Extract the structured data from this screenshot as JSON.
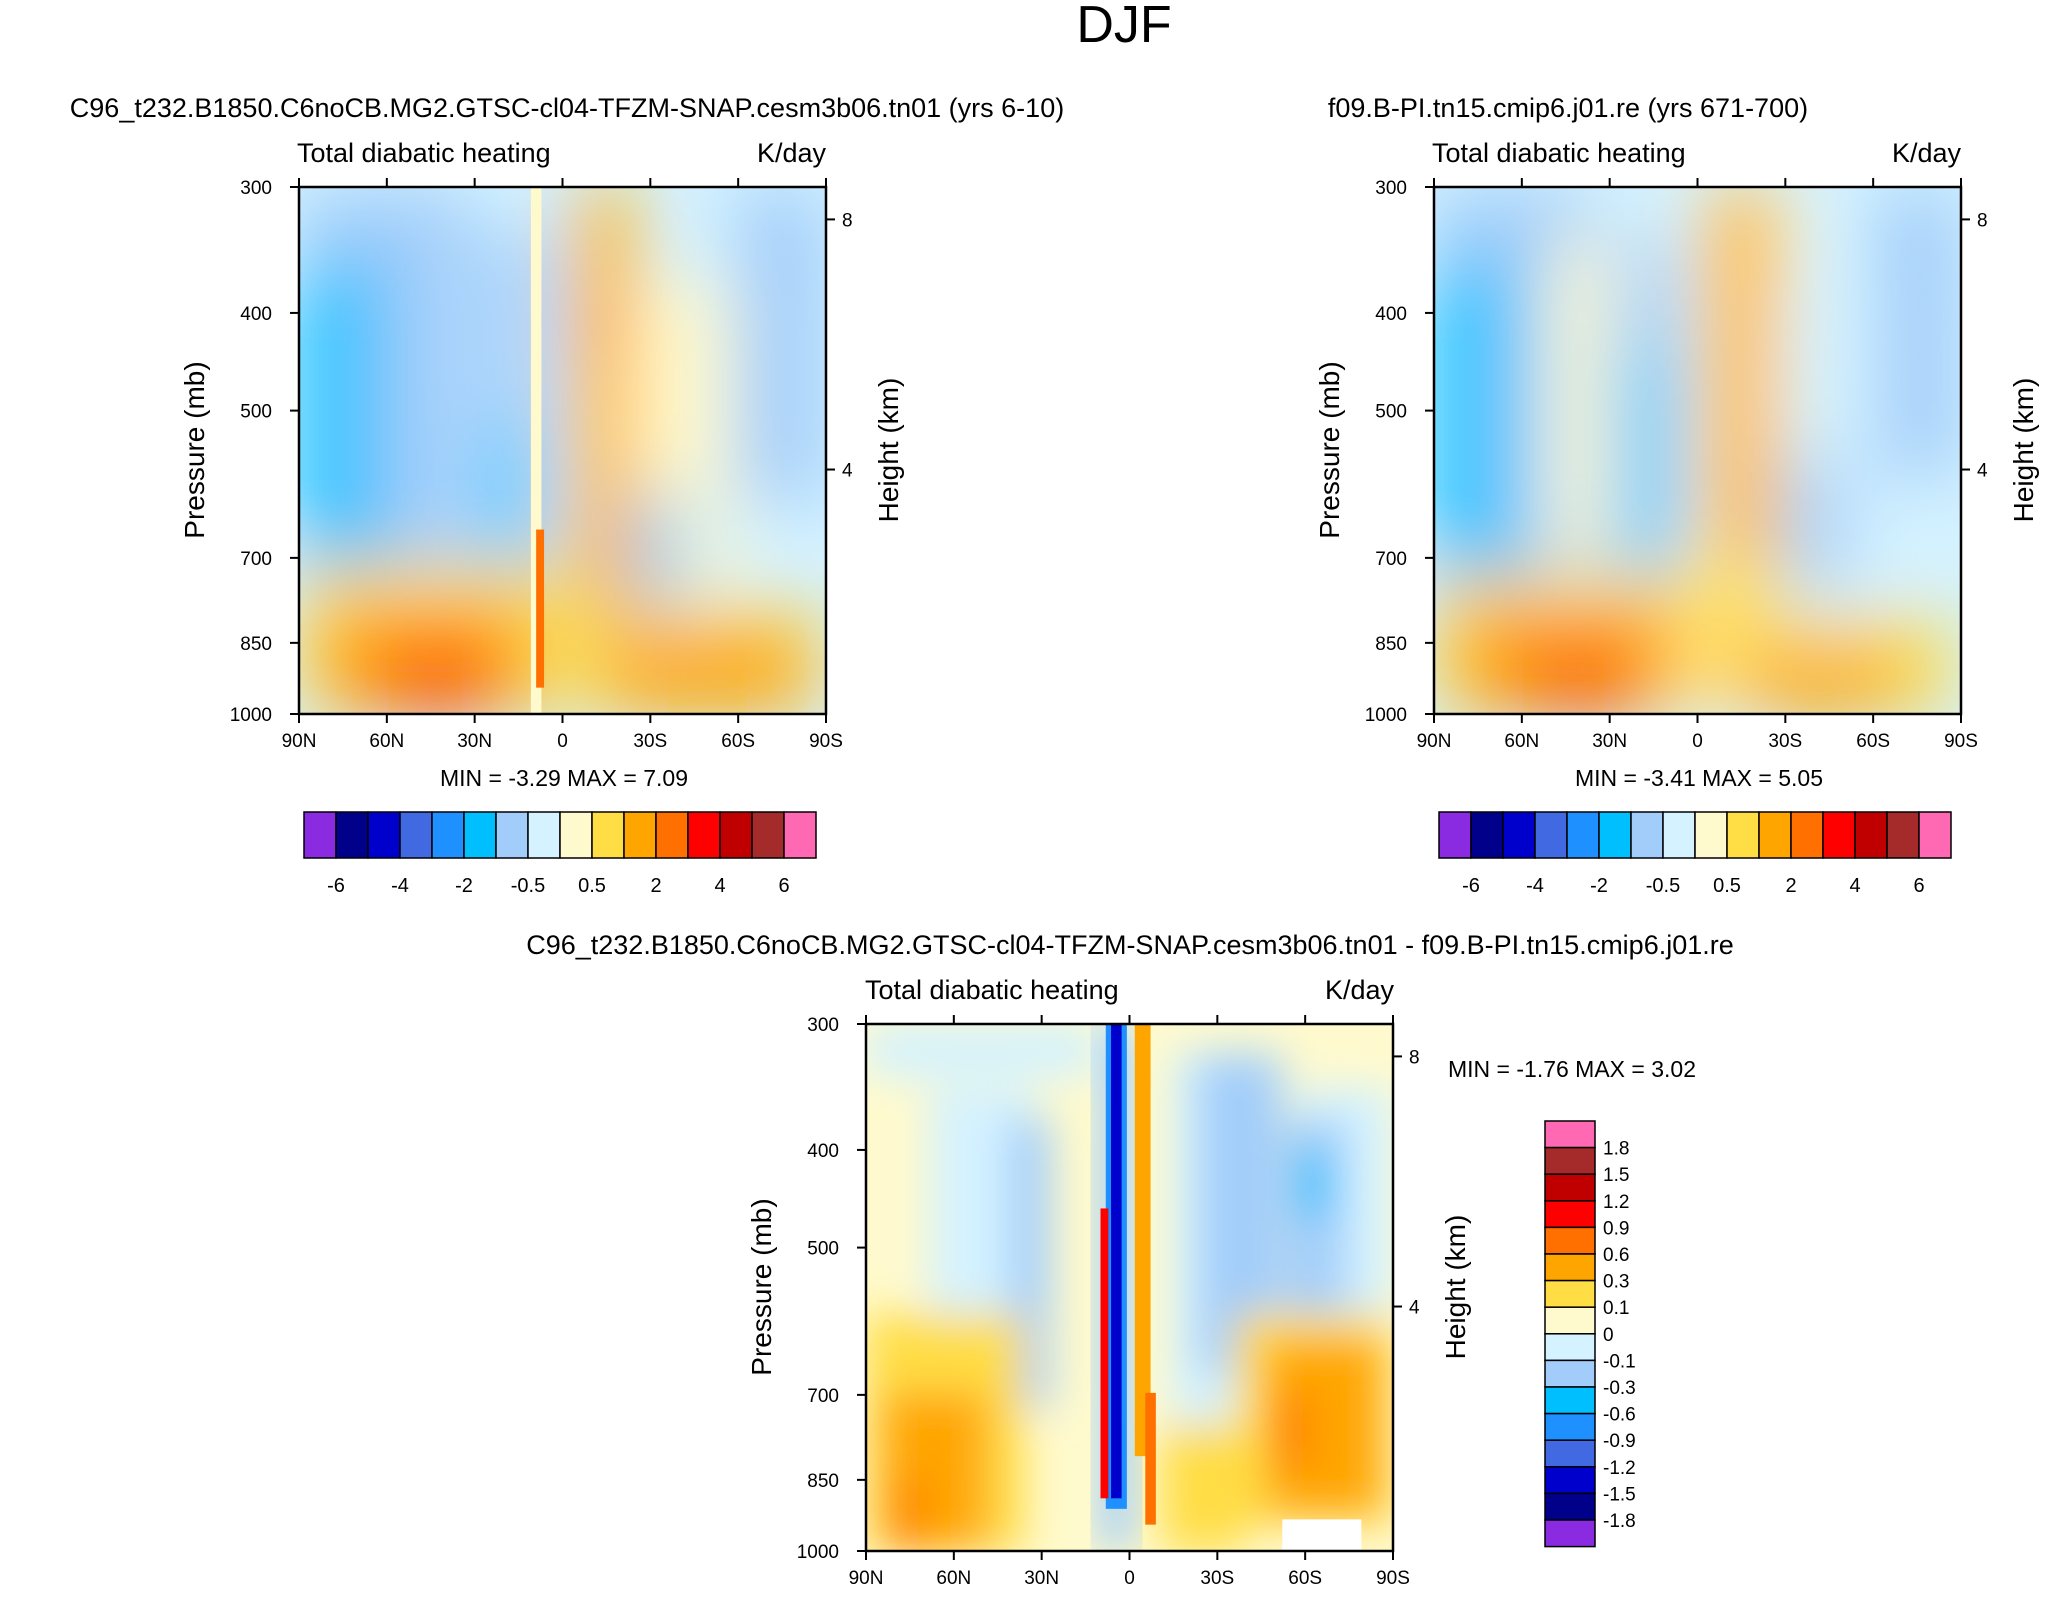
{
  "page": {
    "title": "DJF"
  },
  "chart_data": [
    {
      "type": "heatmap",
      "panel": "top-left",
      "case_title": "C96_t232.B1850.C6noCB.MG2.GTSC-cl04-TFZM-SNAP.cesm3b06.tn01 (yrs 6-10)",
      "variable": "Total diabatic heating",
      "units": "K/day",
      "ylabel": "Pressure (mb)",
      "ylabel_right": "Height (km)",
      "x_ticks": [
        "90N",
        "60N",
        "30N",
        "0",
        "30S",
        "60S",
        "90S"
      ],
      "y_ticks": [
        "300",
        "400",
        "500",
        "700",
        "850",
        "1000"
      ],
      "y2_ticks": [
        "8",
        "4"
      ],
      "stats": "MIN =  -3.29   MAX =   7.09",
      "colorbar_orientation": "horizontal",
      "colorbar_labels": [
        "-6",
        "-4",
        "-2",
        "-0.5",
        "0.5",
        "2",
        "4",
        "6"
      ]
    },
    {
      "type": "heatmap",
      "panel": "top-right",
      "case_title": "f09.B-PI.tn15.cmip6.j01.re (yrs 671-700)",
      "variable": "Total diabatic heating",
      "units": "K/day",
      "ylabel": "Pressure (mb)",
      "ylabel_right": "Height (km)",
      "x_ticks": [
        "90N",
        "60N",
        "30N",
        "0",
        "30S",
        "60S",
        "90S"
      ],
      "y_ticks": [
        "300",
        "400",
        "500",
        "700",
        "850",
        "1000"
      ],
      "y2_ticks": [
        "8",
        "4"
      ],
      "stats": "MIN =  -3.41   MAX =   5.05",
      "colorbar_orientation": "horizontal",
      "colorbar_labels": [
        "-6",
        "-4",
        "-2",
        "-0.5",
        "0.5",
        "2",
        "4",
        "6"
      ]
    },
    {
      "type": "heatmap",
      "panel": "bottom-center",
      "case_title": "C96_t232.B1850.C6noCB.MG2.GTSC-cl04-TFZM-SNAP.cesm3b06.tn01 - f09.B-PI.tn15.cmip6.j01.re",
      "variable": "Total diabatic heating",
      "units": "K/day",
      "ylabel": "Pressure (mb)",
      "ylabel_right": "Height (km)",
      "x_ticks": [
        "90N",
        "60N",
        "30N",
        "0",
        "30S",
        "60S",
        "90S"
      ],
      "y_ticks": [
        "300",
        "400",
        "500",
        "700",
        "850",
        "1000"
      ],
      "y2_ticks": [
        "8",
        "4"
      ],
      "stats": "MIN =  -1.76   MAX =   3.02",
      "colorbar_orientation": "vertical",
      "colorbar_labels": [
        "1.8",
        "1.5",
        "1.2",
        "0.9",
        "0.6",
        "0.3",
        "0.1",
        "0",
        "-0.1",
        "-0.3",
        "-0.6",
        "-0.9",
        "-1.2",
        "-1.5",
        "-1.8"
      ]
    }
  ],
  "colors": {
    "horiz_scale": [
      "#8a2be2",
      "#00008b",
      "#0000cd",
      "#4169e1",
      "#1e90ff",
      "#00bfff",
      "#a2cdfa",
      "#d4f2ff",
      "#fffacd",
      "#ffdd44",
      "#ffa500",
      "#ff7000",
      "#ff0000",
      "#c00000",
      "#a52a2a",
      "#ff69b4"
    ],
    "vert_scale_top_to_bottom": [
      "#ff69b4",
      "#a52a2a",
      "#c00000",
      "#ff0000",
      "#ff7000",
      "#ffa500",
      "#ffdd44",
      "#fffacd",
      "#d4f2ff",
      "#a2cdfa",
      "#00bfff",
      "#1e90ff",
      "#4169e1",
      "#0000cd",
      "#00008b",
      "#8a2be2"
    ]
  }
}
